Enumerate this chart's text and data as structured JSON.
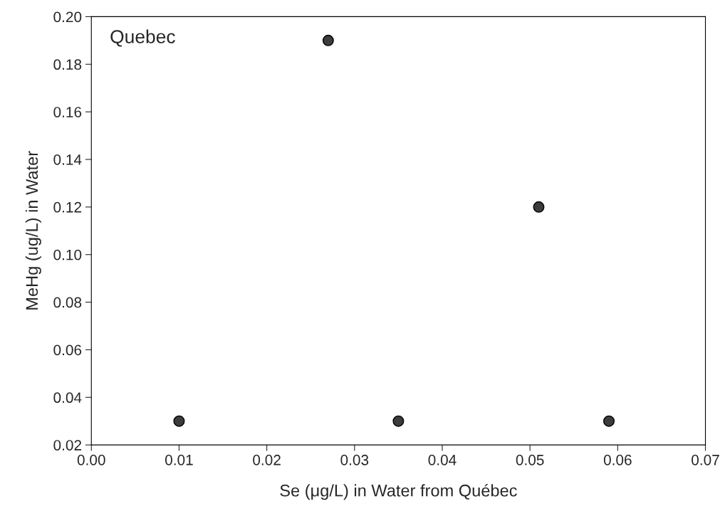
{
  "chart_data": {
    "type": "scatter",
    "xlabel": "Se (μg/L) in Water from Québec",
    "ylabel": "MeHg (ug/L) in Water",
    "annotations": [
      "Quebec"
    ],
    "x": [
      0.01,
      0.027,
      0.035,
      0.051,
      0.059
    ],
    "series": [
      {
        "color": "#3c3c3c",
        "values": [
          0.03,
          0.19,
          0.03,
          0.12,
          0.03
        ]
      }
    ],
    "marker": "circle",
    "xlim": [
      0,
      0.07
    ],
    "xticks": [
      {
        "value": 0,
        "label": "0.00"
      },
      {
        "value": 0.01,
        "label": "0.01"
      },
      {
        "value": 0.02,
        "label": "0.02"
      },
      {
        "value": 0.03,
        "label": "0.03"
      },
      {
        "value": 0.04,
        "label": "0.04"
      },
      {
        "value": 0.05,
        "label": "0.05"
      },
      {
        "value": 0.06,
        "label": "0.06"
      },
      {
        "value": 0.07,
        "label": "0.07"
      }
    ],
    "ylim": [
      0.02,
      0.2
    ],
    "yticks": [
      {
        "value": 0.02,
        "label": "0.02"
      },
      {
        "value": 0.04,
        "label": "0.04"
      },
      {
        "value": 0.06,
        "label": "0.06"
      },
      {
        "value": 0.08,
        "label": "0.08"
      },
      {
        "value": 0.1,
        "label": "0.10"
      },
      {
        "value": 0.12,
        "label": "0.12"
      },
      {
        "value": 0.14,
        "label": "0.14"
      },
      {
        "value": 0.16,
        "label": "0.16"
      },
      {
        "value": 0.18,
        "label": "0.18"
      },
      {
        "value": 0.2,
        "label": "0.20"
      }
    ],
    "grid": false,
    "legend": false
  }
}
